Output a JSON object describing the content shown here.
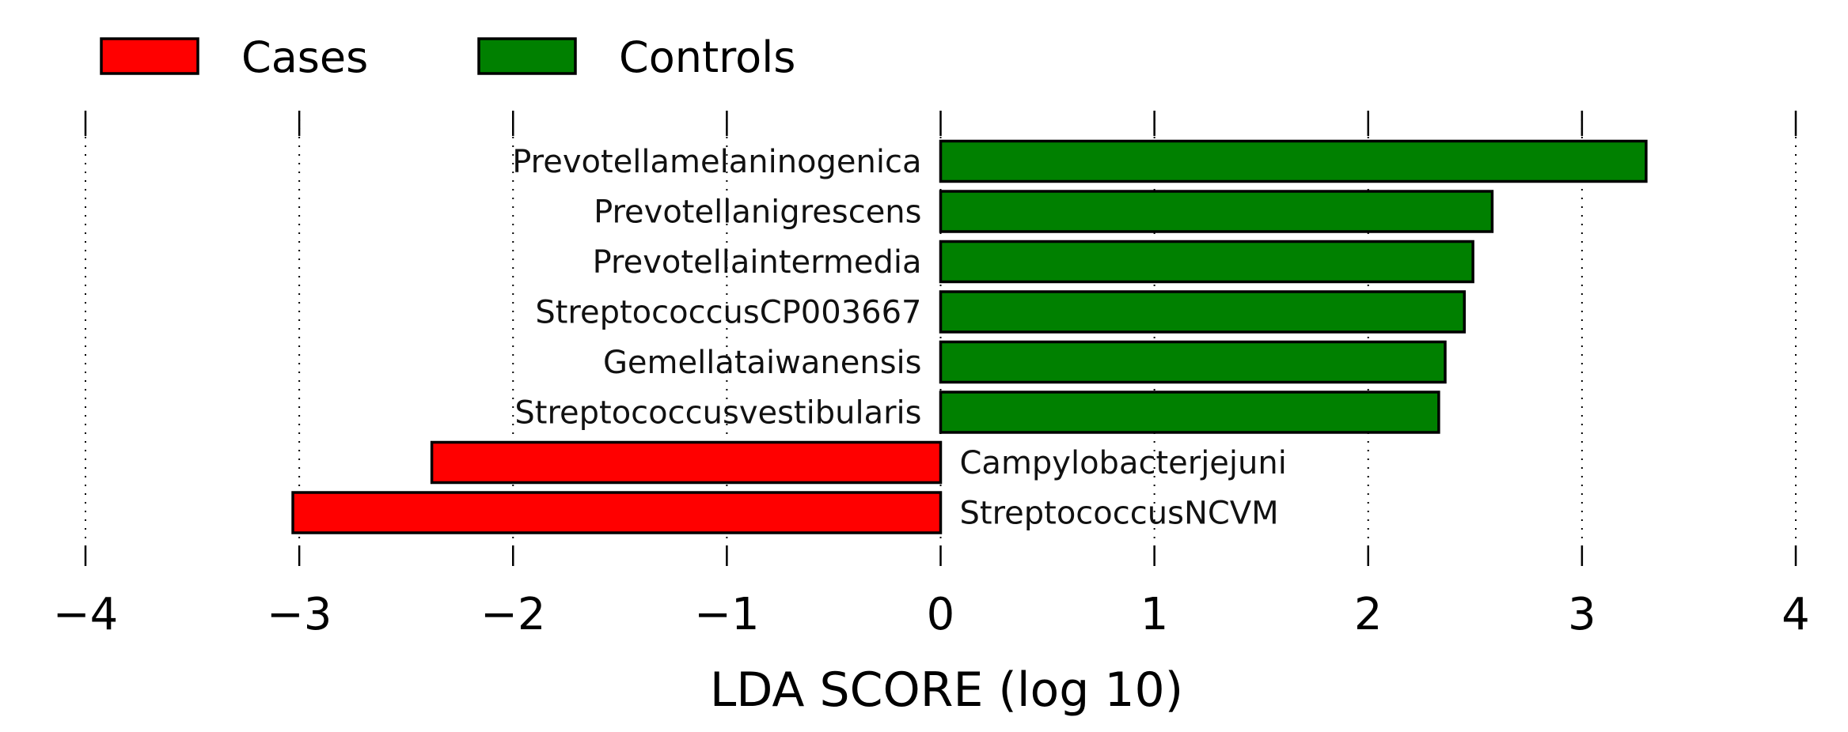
{
  "chart_data": {
    "type": "bar",
    "orientation": "horizontal",
    "title": "",
    "xlabel": "LDA SCORE (log 10)",
    "ylabel": "",
    "xlim": [
      -4,
      4
    ],
    "xticks": [
      -4,
      -3,
      -2,
      -1,
      0,
      1,
      2,
      3,
      4
    ],
    "xtick_labels": [
      "−4",
      "−3",
      "−2",
      "−1",
      "0",
      "1",
      "2",
      "3",
      "4"
    ],
    "grid": "vertical dotted",
    "legend_position": "top-left",
    "legend": [
      {
        "name": "Cases",
        "color": "#ff0000"
      },
      {
        "name": "Controls",
        "color": "#008000"
      }
    ],
    "bars": [
      {
        "label": "Prevotellamelaninogenica",
        "value": 3.3,
        "group": "Controls"
      },
      {
        "label": "Prevotellanigrescens",
        "value": 2.58,
        "group": "Controls"
      },
      {
        "label": "Prevotellaintermedia",
        "value": 2.49,
        "group": "Controls"
      },
      {
        "label": "StreptococcusCP003667",
        "value": 2.45,
        "group": "Controls"
      },
      {
        "label": "Gemellataiwanensis",
        "value": 2.36,
        "group": "Controls"
      },
      {
        "label": "Streptococcusvestibularis",
        "value": 2.33,
        "group": "Controls"
      },
      {
        "label": "Campylobacterjejuni",
        "value": -2.38,
        "group": "Cases"
      },
      {
        "label": "StreptococcusNCVM",
        "value": -3.03,
        "group": "Cases"
      }
    ]
  }
}
